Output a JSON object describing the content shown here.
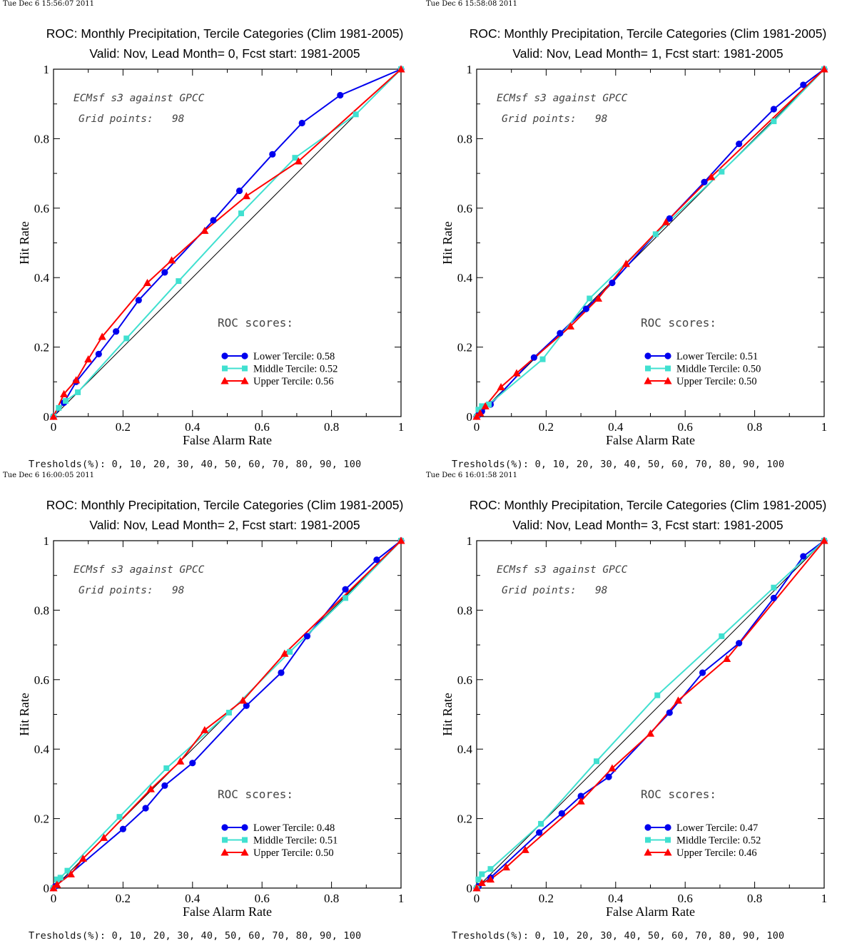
{
  "colors": {
    "lower": "#0000ee",
    "middle": "#40e0d0",
    "upper": "#ff0000",
    "axis": "#000000"
  },
  "chart_data": [
    {
      "type": "line",
      "timestamp": "Tue Dec  6 15:56:07 2011",
      "title": "ROC: Monthly Precipitation, Tercile Categories (Clim 1981-2005)",
      "subtitle": "Valid: Nov, Lead Month= 0, Fcst start: 1981-2005",
      "xlabel": "False Alarm Rate",
      "ylabel": "Hit Rate",
      "xlim": [
        0,
        1
      ],
      "ylim": [
        0,
        1
      ],
      "x_ticks": [
        "0",
        "0.2",
        "0.4",
        "0.6",
        "0.8",
        "1"
      ],
      "y_ticks": [
        "0",
        "0.2",
        "0.4",
        "0.6",
        "0.8",
        "1"
      ],
      "annotation1": "ECMsf s3 against GPCC",
      "annotation2": "Grid points:   98",
      "roc_header": "ROC scores:",
      "thresholds": "Tresholds(%): 0, 10, 20, 30, 40, 50, 60, 70, 80, 90, 100",
      "series": [
        {
          "name": "Lower Tercile: 0.58",
          "key": "lower",
          "marker": "circle",
          "x": [
            0,
            0.03,
            0.065,
            0.13,
            0.18,
            0.245,
            0.32,
            0.46,
            0.535,
            0.63,
            0.715,
            0.825,
            1
          ],
          "y": [
            0,
            0.04,
            0.1,
            0.18,
            0.245,
            0.335,
            0.415,
            0.565,
            0.65,
            0.755,
            0.845,
            0.925,
            1
          ]
        },
        {
          "name": "Middle Tercile: 0.52",
          "key": "middle",
          "marker": "square",
          "x": [
            0,
            0.015,
            0.035,
            0.07,
            0.21,
            0.36,
            0.54,
            0.695,
            0.87,
            1
          ],
          "y": [
            0,
            0.025,
            0.045,
            0.07,
            0.225,
            0.39,
            0.585,
            0.745,
            0.87,
            1
          ]
        },
        {
          "name": "Upper Tercile: 0.56",
          "key": "upper",
          "marker": "triangle",
          "x": [
            0,
            0.03,
            0.065,
            0.1,
            0.14,
            0.27,
            0.34,
            0.435,
            0.555,
            0.705,
            1
          ],
          "y": [
            0,
            0.065,
            0.105,
            0.165,
            0.23,
            0.385,
            0.45,
            0.535,
            0.635,
            0.735,
            1
          ]
        }
      ]
    },
    {
      "type": "line",
      "timestamp": "Tue Dec  6 15:58:08 2011",
      "title": "ROC: Monthly Precipitation, Tercile Categories (Clim 1981-2005)",
      "subtitle": "Valid: Nov, Lead Month= 1, Fcst start: 1981-2005",
      "xlabel": "False Alarm Rate",
      "ylabel": "Hit Rate",
      "xlim": [
        0,
        1
      ],
      "ylim": [
        0,
        1
      ],
      "x_ticks": [
        "0",
        "0.2",
        "0.4",
        "0.6",
        "0.8",
        "1"
      ],
      "y_ticks": [
        "0",
        "0.2",
        "0.4",
        "0.6",
        "0.8",
        "1"
      ],
      "annotation1": "ECMsf s3 against GPCC",
      "annotation2": "Grid points:   98",
      "roc_header": "ROC scores:",
      "thresholds": "Tresholds(%): 0, 10, 20, 30, 40, 50, 60, 70, 80, 90, 100",
      "series": [
        {
          "name": "Lower Tercile: 0.51",
          "key": "lower",
          "marker": "circle",
          "x": [
            0,
            0.005,
            0.015,
            0.04,
            0.165,
            0.24,
            0.315,
            0.39,
            0.555,
            0.655,
            0.755,
            0.855,
            0.94,
            1
          ],
          "y": [
            0,
            0.005,
            0.015,
            0.035,
            0.17,
            0.24,
            0.31,
            0.385,
            0.57,
            0.675,
            0.785,
            0.885,
            0.955,
            1
          ]
        },
        {
          "name": "Middle Tercile: 0.50",
          "key": "middle",
          "marker": "square",
          "x": [
            0,
            0.005,
            0.015,
            0.035,
            0.19,
            0.325,
            0.515,
            0.705,
            0.855,
            1
          ],
          "y": [
            0,
            0.02,
            0.03,
            0.035,
            0.165,
            0.34,
            0.525,
            0.705,
            0.85,
            1
          ]
        },
        {
          "name": "Upper Tercile: 0.50",
          "key": "upper",
          "marker": "triangle",
          "x": [
            0,
            0.01,
            0.025,
            0.07,
            0.115,
            0.27,
            0.35,
            0.43,
            0.545,
            0.675,
            1
          ],
          "y": [
            0,
            0.01,
            0.03,
            0.085,
            0.125,
            0.26,
            0.34,
            0.44,
            0.56,
            0.69,
            1
          ]
        }
      ]
    },
    {
      "type": "line",
      "timestamp": "Tue Dec  6 16:00:05 2011",
      "title": "ROC: Monthly Precipitation, Tercile Categories (Clim 1981-2005)",
      "subtitle": "Valid: Nov, Lead Month= 2, Fcst start: 1981-2005",
      "xlabel": "False Alarm Rate",
      "ylabel": "Hit Rate",
      "xlim": [
        0,
        1
      ],
      "ylim": [
        0,
        1
      ],
      "x_ticks": [
        "0",
        "0.2",
        "0.4",
        "0.6",
        "0.8",
        "1"
      ],
      "y_ticks": [
        "0",
        "0.2",
        "0.4",
        "0.6",
        "0.8",
        "1"
      ],
      "annotation1": "ECMsf s3 against GPCC",
      "annotation2": "Grid points:   98",
      "roc_header": "ROC scores:",
      "thresholds": "Tresholds(%): 0, 10, 20, 30, 40, 50, 60, 70, 80, 90, 100",
      "series": [
        {
          "name": "Lower Tercile: 0.48",
          "key": "lower",
          "marker": "circle",
          "x": [
            0,
            0.005,
            0.2,
            0.265,
            0.32,
            0.4,
            0.555,
            0.655,
            0.73,
            0.84,
            0.93,
            1
          ],
          "y": [
            0,
            0.005,
            0.17,
            0.23,
            0.295,
            0.36,
            0.525,
            0.62,
            0.725,
            0.86,
            0.945,
            1
          ]
        },
        {
          "name": "Middle Tercile: 0.51",
          "key": "middle",
          "marker": "square",
          "x": [
            0,
            0.01,
            0.02,
            0.04,
            0.19,
            0.325,
            0.505,
            0.68,
            0.84,
            1
          ],
          "y": [
            0,
            0.025,
            0.03,
            0.05,
            0.205,
            0.345,
            0.505,
            0.68,
            0.835,
            1
          ]
        },
        {
          "name": "Upper Tercile: 0.50",
          "key": "upper",
          "marker": "triangle",
          "x": [
            0,
            0.01,
            0.05,
            0.085,
            0.145,
            0.28,
            0.365,
            0.435,
            0.545,
            0.665,
            1
          ],
          "y": [
            0,
            0.01,
            0.04,
            0.085,
            0.145,
            0.285,
            0.365,
            0.455,
            0.54,
            0.675,
            1
          ]
        }
      ]
    },
    {
      "type": "line",
      "timestamp": "Tue Dec  6 16:01:58 2011",
      "title": "ROC: Monthly Precipitation, Tercile Categories (Clim 1981-2005)",
      "subtitle": "Valid: Nov, Lead Month= 3, Fcst start: 1981-2005",
      "xlabel": "False Alarm Rate",
      "ylabel": "Hit Rate",
      "xlim": [
        0,
        1
      ],
      "ylim": [
        0,
        1
      ],
      "x_ticks": [
        "0",
        "0.2",
        "0.4",
        "0.6",
        "0.8",
        "1"
      ],
      "y_ticks": [
        "0",
        "0.2",
        "0.4",
        "0.6",
        "0.8",
        "1"
      ],
      "annotation1": "ECMsf s3 against GPCC",
      "annotation2": "Grid points:   98",
      "roc_header": "ROC scores:",
      "thresholds": "Tresholds(%): 0, 10, 20, 30, 40, 50, 60, 70, 80, 90, 100",
      "series": [
        {
          "name": "Lower Tercile: 0.47",
          "key": "lower",
          "marker": "circle",
          "x": [
            0,
            0.005,
            0.04,
            0.18,
            0.245,
            0.3,
            0.38,
            0.555,
            0.65,
            0.755,
            0.855,
            0.94,
            1
          ],
          "y": [
            0,
            0.005,
            0.03,
            0.16,
            0.215,
            0.265,
            0.32,
            0.505,
            0.62,
            0.705,
            0.835,
            0.955,
            1
          ]
        },
        {
          "name": "Middle Tercile: 0.52",
          "key": "middle",
          "marker": "square",
          "x": [
            0,
            0.005,
            0.015,
            0.04,
            0.185,
            0.345,
            0.52,
            0.705,
            0.855,
            1
          ],
          "y": [
            0,
            0.025,
            0.04,
            0.055,
            0.185,
            0.365,
            0.555,
            0.725,
            0.865,
            1
          ]
        },
        {
          "name": "Upper Tercile: 0.46",
          "key": "upper",
          "marker": "triangle",
          "x": [
            0,
            0.015,
            0.04,
            0.085,
            0.14,
            0.3,
            0.39,
            0.5,
            0.58,
            0.72,
            1
          ],
          "y": [
            0,
            0.015,
            0.025,
            0.06,
            0.11,
            0.25,
            0.345,
            0.445,
            0.54,
            0.66,
            1
          ]
        }
      ]
    }
  ]
}
